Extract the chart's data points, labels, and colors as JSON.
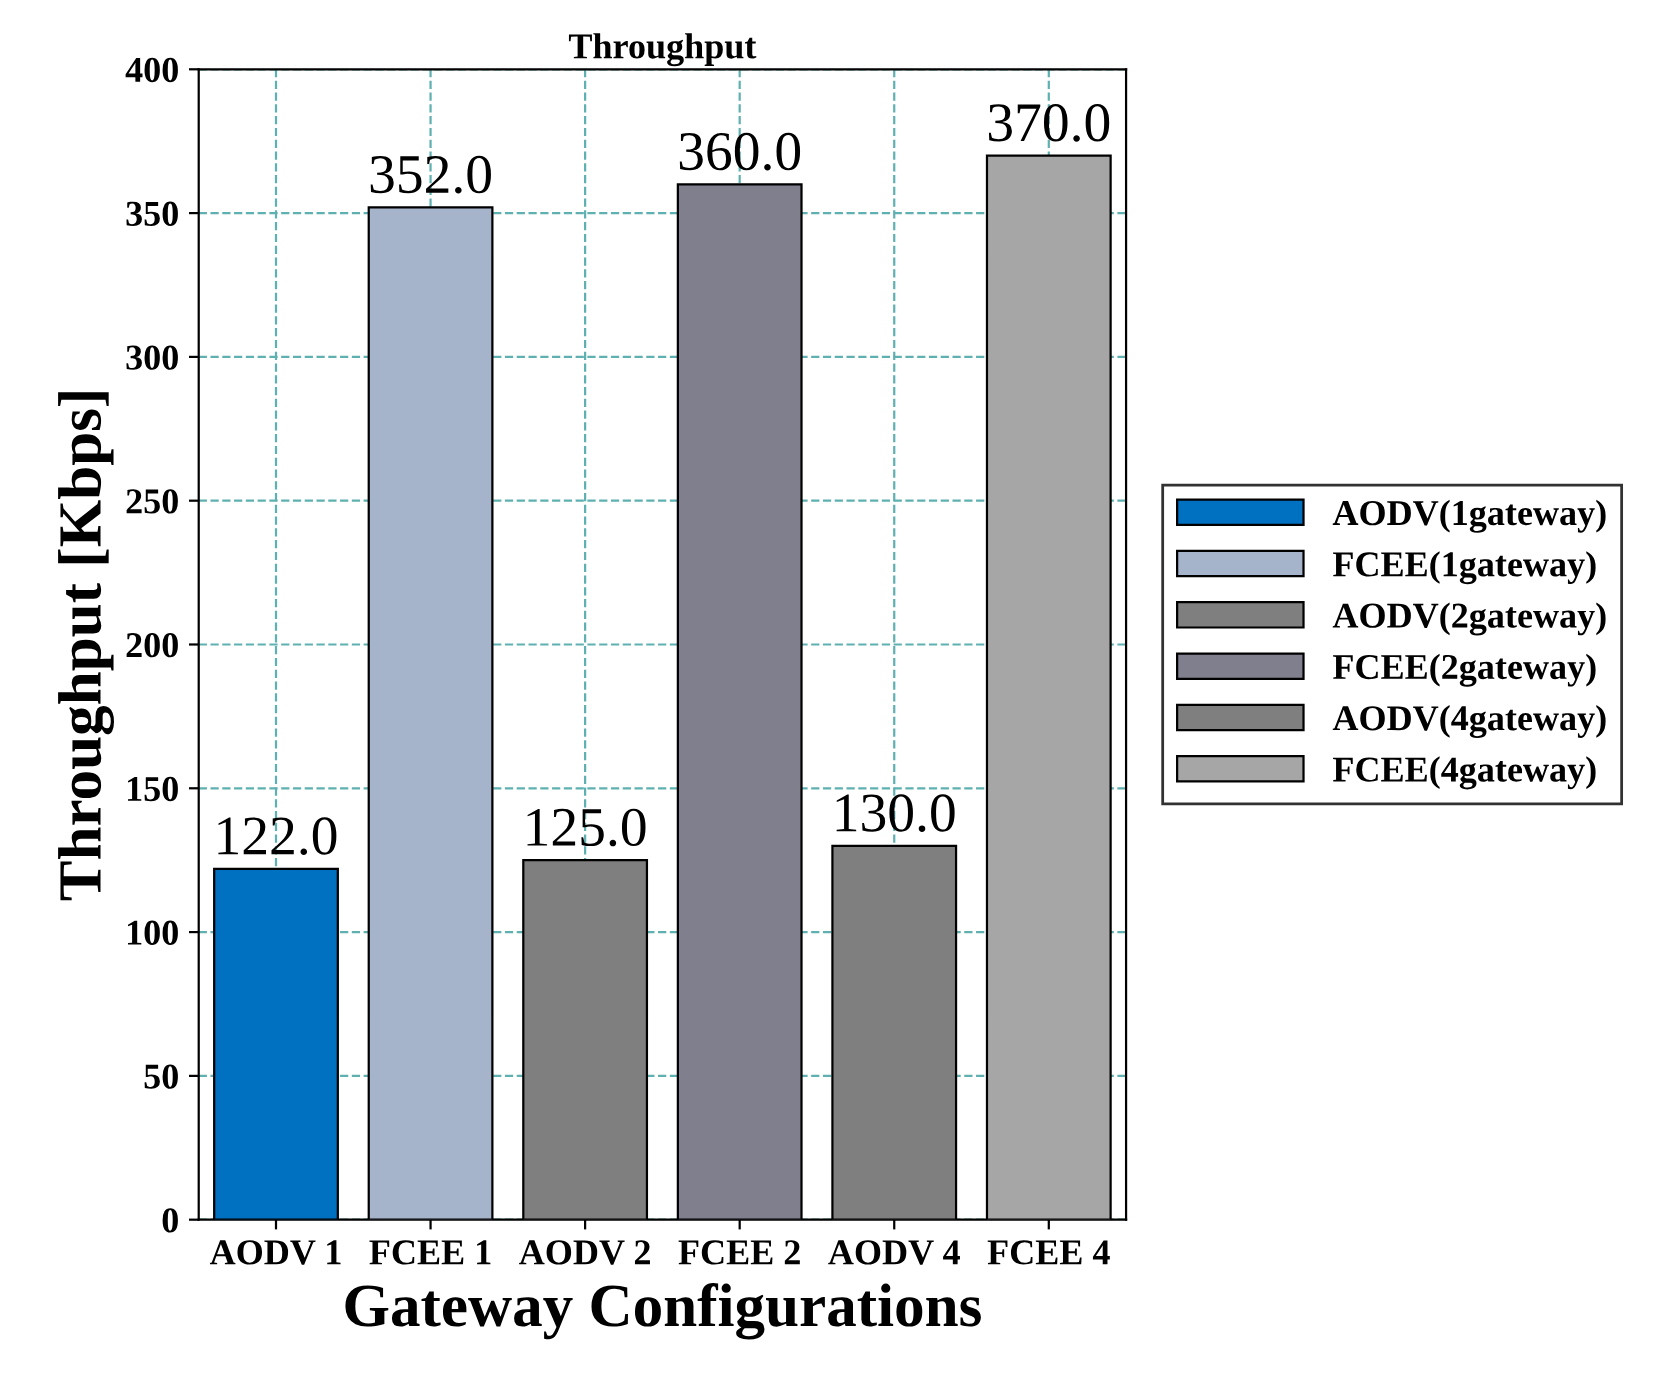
{
  "chart_data": {
    "type": "bar",
    "title": "Throughput",
    "xlabel": "Gateway Configurations",
    "ylabel": "Throughput [Kbps]",
    "categories": [
      "AODV 1",
      "FCEE 1",
      "AODV 2",
      "FCEE 2",
      "AODV 4",
      "FCEE 4"
    ],
    "series": [
      {
        "name": "AODV(1gateway)",
        "color": "#0070c0",
        "values": [
          122.0,
          null,
          null,
          null,
          null,
          null
        ]
      },
      {
        "name": "FCEE(1gateway)",
        "color": "#a6b4cb",
        "values": [
          null,
          352.0,
          null,
          null,
          null,
          null
        ]
      },
      {
        "name": "AODV(2gateway)",
        "color": "#7f7f7f",
        "values": [
          null,
          null,
          125.0,
          null,
          null,
          null
        ]
      },
      {
        "name": "FCEE(2gateway)",
        "color": "#7f7f8e",
        "values": [
          null,
          null,
          null,
          360.0,
          null,
          null
        ]
      },
      {
        "name": "AODV(4gateway)",
        "color": "#7f7f7f",
        "values": [
          null,
          null,
          null,
          null,
          130.0,
          null
        ]
      },
      {
        "name": "FCEE(4gateway)",
        "color": "#a6a6a6",
        "values": [
          null,
          null,
          null,
          null,
          null,
          370.0
        ]
      }
    ],
    "value_labels": [
      "122.0",
      "352.0",
      "125.0",
      "360.0",
      "130.0",
      "370.0"
    ],
    "ylim": [
      0,
      400
    ],
    "yticks": [
      0,
      50,
      100,
      150,
      200,
      250,
      300,
      350,
      400
    ],
    "grid": true,
    "legend": "right"
  }
}
